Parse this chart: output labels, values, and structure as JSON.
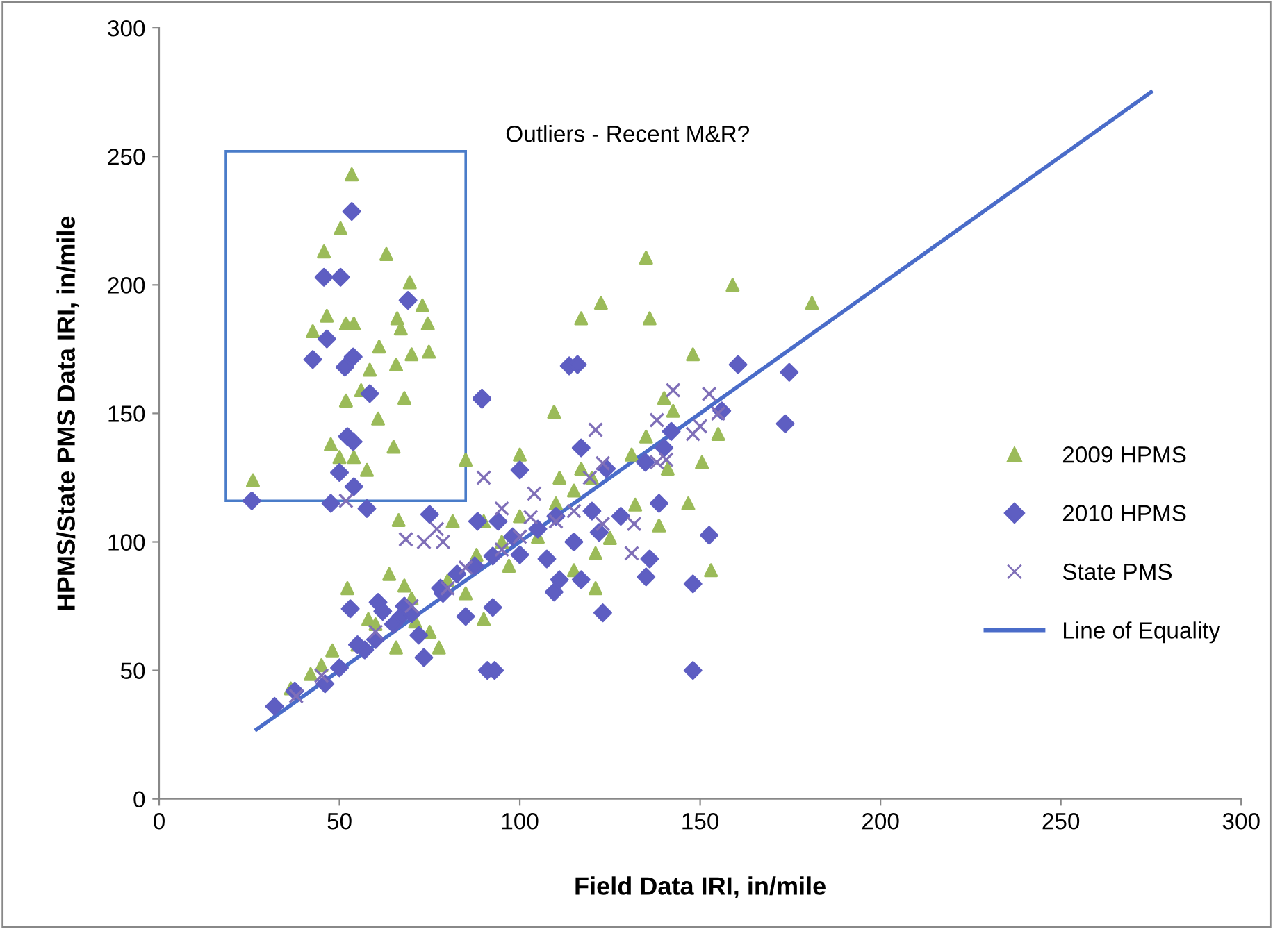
{
  "chart_data": {
    "type": "scatter",
    "xlabel": "Field Data IRI, in/mile",
    "ylabel": "HPMS/State PMS Data IRI, in/mile",
    "xlim": [
      0,
      300
    ],
    "ylim": [
      0,
      300
    ],
    "xticks": [
      0,
      50,
      100,
      150,
      200,
      250,
      300
    ],
    "yticks": [
      0,
      50,
      100,
      150,
      200,
      250,
      300
    ],
    "grid": false,
    "legend": "right",
    "annotations": [
      "Outliers - Recent M&R?"
    ],
    "series": [
      {
        "name": "2009 HPMS",
        "marker": "triangle",
        "color": "#9bbb59",
        "x": [
          53.4,
          50.3,
          45.7,
          63,
          69.5,
          73,
          46.5,
          51.8,
          54,
          66,
          74.5,
          42.6,
          67,
          61,
          70,
          74.8,
          65.7,
          58.4,
          56,
          51.8,
          68,
          60.7,
          47.6,
          50,
          54,
          65,
          57.6,
          26,
          85,
          135,
          159,
          181,
          122.5,
          117,
          136,
          148,
          109.5,
          140,
          142.5,
          135,
          155,
          150.5,
          131,
          141,
          100,
          111,
          117,
          132,
          146.7,
          138.6,
          153,
          125,
          121,
          121,
          115,
          97,
          66.4,
          81.4,
          52.2,
          63.8,
          65.7,
          77.6,
          36.5,
          42,
          48,
          90,
          71,
          55,
          60,
          70,
          75,
          85,
          88,
          95,
          100,
          105,
          110,
          115,
          120,
          90,
          80,
          45,
          58,
          68
        ],
        "values": [
          243,
          222,
          213,
          212,
          201,
          192,
          188,
          185,
          185,
          187,
          185,
          182,
          183,
          176,
          173,
          174,
          169,
          167,
          159,
          155,
          156,
          148,
          138,
          133,
          133,
          137,
          128,
          124,
          132,
          210.6,
          200,
          193,
          193,
          187,
          187,
          173,
          150.6,
          156,
          151,
          141,
          142,
          131,
          134,
          128.5,
          134,
          125,
          128.5,
          114.5,
          115,
          106.4,
          89,
          101.5,
          95.6,
          82,
          89,
          90.7,
          108.5,
          108,
          82,
          87.5,
          58.9,
          58.9,
          43,
          48.6,
          57.8,
          70,
          69,
          60,
          68,
          78,
          65,
          80,
          95,
          100,
          110,
          102,
          115,
          120,
          125,
          108,
          85,
          52,
          70,
          83
        ]
      },
      {
        "name": "2010 HPMS",
        "marker": "diamond",
        "color": "#5e5ec2",
        "x": [
          53.4,
          45.7,
          50.3,
          69,
          46.5,
          42.6,
          53.8,
          51.5,
          58.4,
          52.2,
          53.8,
          50,
          54,
          25.7,
          47.6,
          57.6,
          89.5,
          113.7,
          116,
          160.5,
          174.7,
          173.6,
          156,
          142,
          140,
          117,
          134.8,
          124,
          100,
          89.5,
          138.6,
          152.5,
          136,
          135,
          148,
          123,
          109.5,
          117,
          111,
          107.5,
          122,
          115,
          92.5,
          148,
          91,
          93,
          75,
          85,
          53,
          73.4,
          32,
          37.6,
          46,
          50,
          57,
          62,
          67,
          60.7,
          72,
          78.7,
          82.6,
          87.5,
          92.5,
          88.3,
          94,
          65,
          70,
          68,
          60,
          55,
          78,
          100,
          105,
          110,
          98,
          120,
          128
        ],
        "values": [
          228.6,
          203,
          203,
          194,
          179,
          171,
          172,
          168,
          157.7,
          141,
          139,
          127,
          121.5,
          116,
          115,
          113,
          155.5,
          168.5,
          169,
          169,
          166,
          146,
          151,
          143,
          136.6,
          136.6,
          131,
          128.5,
          128,
          156,
          115,
          102.6,
          93.4,
          86.4,
          83.7,
          72.4,
          80.5,
          85.3,
          85.3,
          93.4,
          103.7,
          100,
          74.5,
          50,
          50,
          50,
          110.7,
          71,
          74,
          55,
          36,
          42,
          44.8,
          51,
          58,
          73,
          71,
          76.5,
          63.7,
          80,
          87.5,
          90.7,
          94.5,
          108,
          108,
          68,
          72,
          75,
          62,
          60,
          82,
          95,
          105,
          110,
          102,
          112,
          110
        ]
      },
      {
        "name": "State PMS",
        "marker": "cross",
        "color": "#7f6fb8",
        "x": [
          51.8,
          68.4,
          77,
          78.7,
          90,
          73.4,
          142.5,
          152.5,
          121,
          138,
          148,
          140.6,
          131.7,
          131,
          123,
          95,
          104,
          119.4,
          123,
          103,
          138,
          60,
          70,
          80,
          85,
          95,
          100,
          110,
          115,
          45,
          38,
          155,
          150
        ],
        "values": [
          116,
          101,
          105,
          100,
          125,
          100,
          159,
          157.6,
          143.6,
          147.4,
          142,
          132,
          107,
          95.6,
          130.6,
          113,
          118.8,
          125,
          107,
          109.6,
          131,
          65,
          75,
          82,
          90,
          97,
          102,
          108,
          112,
          48,
          40,
          150,
          145
        ]
      },
      {
        "name": "Line of Equality",
        "type": "line",
        "marker": "none",
        "line_style": "solid",
        "color": "#4a6cc9",
        "x": [
          27,
          275
        ],
        "values": [
          27,
          275
        ]
      }
    ]
  }
}
